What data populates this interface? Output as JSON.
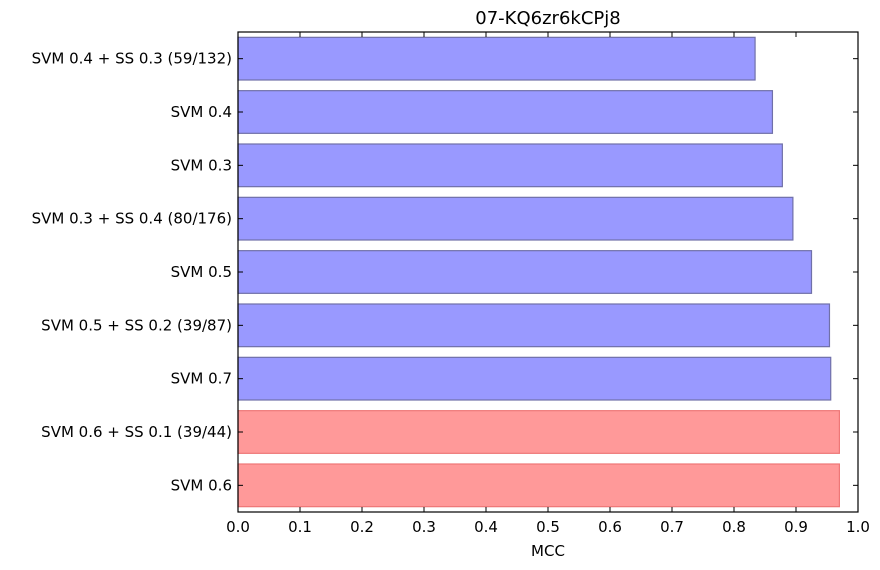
{
  "chart_data": {
    "type": "bar",
    "orientation": "horizontal",
    "title": "07-KQ6zr6kCPj8",
    "xlabel": "MCC",
    "ylabel": "",
    "xlim": [
      0.0,
      1.0
    ],
    "xticks": [
      "0.0",
      "0.1",
      "0.2",
      "0.3",
      "0.4",
      "0.5",
      "0.6",
      "0.7",
      "0.8",
      "0.9",
      "1.0"
    ],
    "grid": false,
    "categories": [
      "SVM 0.4 + SS 0.3 (59/132)",
      "SVM 0.4",
      "SVM 0.3",
      "SVM 0.3 + SS 0.4 (80/176)",
      "SVM 0.5",
      "SVM 0.5 + SS 0.2 (39/87)",
      "SVM 0.7",
      "SVM 0.6 + SS 0.1 (39/44)",
      "SVM 0.6"
    ],
    "values": [
      0.834,
      0.862,
      0.878,
      0.895,
      0.925,
      0.954,
      0.956,
      0.97,
      0.97
    ],
    "highlight": [
      false,
      false,
      false,
      false,
      false,
      false,
      false,
      true,
      true
    ],
    "colors": {
      "bar_fill": "#9999ff",
      "bar_edge": "#7070a8",
      "highlight_fill": "#ff9999",
      "highlight_edge": "#ee7777"
    }
  }
}
